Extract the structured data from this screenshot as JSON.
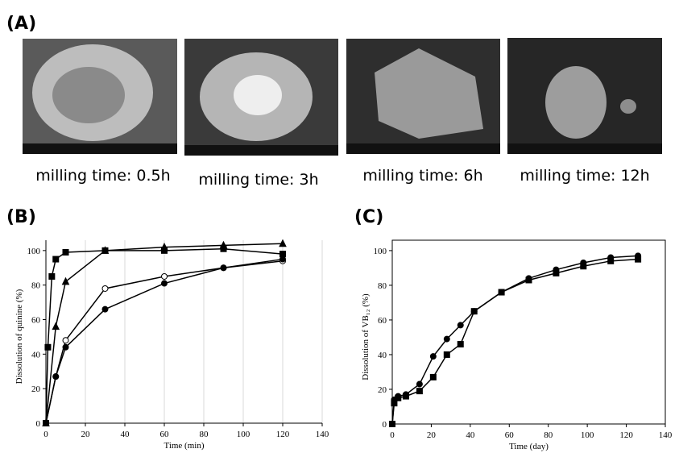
{
  "panels": [
    "(A)",
    "(B)",
    "(C)"
  ],
  "captions": [
    "milling time: 0.5h",
    "milling time: 3h",
    "milling time: 6h",
    "milling time: 12h"
  ],
  "chart_data": [
    {
      "type": "line",
      "xlabel": "Time (min)",
      "ylabel": "Dissolution of quinine (%)",
      "xlim": [
        0,
        140
      ],
      "ylim": [
        0,
        106
      ],
      "xticks": [
        0,
        20,
        40,
        60,
        80,
        100,
        120,
        140
      ],
      "yticks": [
        0,
        20,
        40,
        60,
        80,
        100
      ],
      "grid": "x",
      "frame": false,
      "series": [
        {
          "marker": "square",
          "color": "#000000",
          "fill": "#000000",
          "x": [
            0,
            1,
            3,
            5,
            10,
            30,
            60,
            90,
            120
          ],
          "values": [
            0,
            44,
            85,
            95,
            99,
            100,
            100,
            101,
            98
          ]
        },
        {
          "marker": "triangle",
          "color": "#000000",
          "fill": "#000000",
          "x": [
            0,
            5,
            10,
            30,
            60,
            90,
            120
          ],
          "values": [
            0,
            56,
            82,
            100,
            102,
            103,
            104
          ]
        },
        {
          "marker": "circle",
          "color": "#000000",
          "fill": "#ffffff",
          "x": [
            0,
            5,
            10,
            30,
            60,
            90,
            120
          ],
          "values": [
            0,
            27,
            48,
            78,
            85,
            90,
            94
          ]
        },
        {
          "marker": "circle",
          "color": "#000000",
          "fill": "#000000",
          "x": [
            0,
            5,
            10,
            30,
            60,
            90,
            120
          ],
          "values": [
            0,
            27,
            44,
            66,
            81,
            90,
            95
          ]
        }
      ]
    },
    {
      "type": "line",
      "xlabel": "Time (day)",
      "ylabel": "Dissolution of VB₁₂ (%)",
      "xlim": [
        0,
        140
      ],
      "ylim": [
        0,
        106
      ],
      "xticks": [
        0,
        20,
        40,
        60,
        80,
        100,
        120,
        140
      ],
      "yticks": [
        0,
        20,
        40,
        60,
        80,
        100
      ],
      "grid": "none",
      "frame": true,
      "series": [
        {
          "marker": "circle",
          "color": "#000000",
          "fill": "#000000",
          "x": [
            0,
            1,
            3,
            7,
            14,
            21,
            28,
            35,
            42,
            56,
            70,
            84,
            98,
            112,
            126
          ],
          "values": [
            0,
            14,
            16,
            17,
            23,
            39,
            49,
            57,
            65,
            76,
            84,
            89,
            93,
            96,
            97
          ]
        },
        {
          "marker": "square",
          "color": "#000000",
          "fill": "#000000",
          "x": [
            0,
            1,
            3,
            7,
            14,
            21,
            28,
            35,
            42,
            56,
            70,
            84,
            98,
            112,
            126
          ],
          "values": [
            0,
            12,
            15,
            16,
            19,
            27,
            40,
            46,
            65,
            76,
            83,
            87,
            91,
            94,
            95
          ]
        }
      ]
    }
  ]
}
